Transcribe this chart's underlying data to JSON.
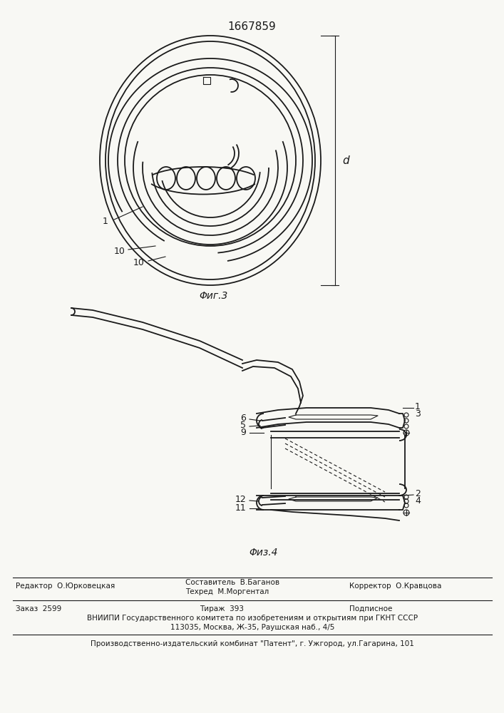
{
  "patent_number": "1667859",
  "bg_color": "#f8f8f4",
  "line_color": "#1a1a1a",
  "fig3_caption": "Φиг.3",
  "fig4_caption": "Φиз.4",
  "footer_line1_left": "Редактор  О.Юрковецкая",
  "footer_line1_mid1": "Составитель  В.Баганов",
  "footer_line1_mid2": "Техред  М.Моргентал",
  "footer_line1_right": "Корректор  О.Кравцова",
  "footer_line2_left": "Заказ  2599",
  "footer_line2_mid": "Тираж  393",
  "footer_line2_right": "Подписное",
  "footer_line3": "ВНИИПИ Государственного комитета по изобретениям и открытиям при ГКНТ СССР",
  "footer_line4": "113035, Москва, Ж-35, Раушская наб., 4/5",
  "footer_line5": "Производственно-издательский комбинат \"Патент\", г. Ужгород, ул.Гагарина, 101"
}
